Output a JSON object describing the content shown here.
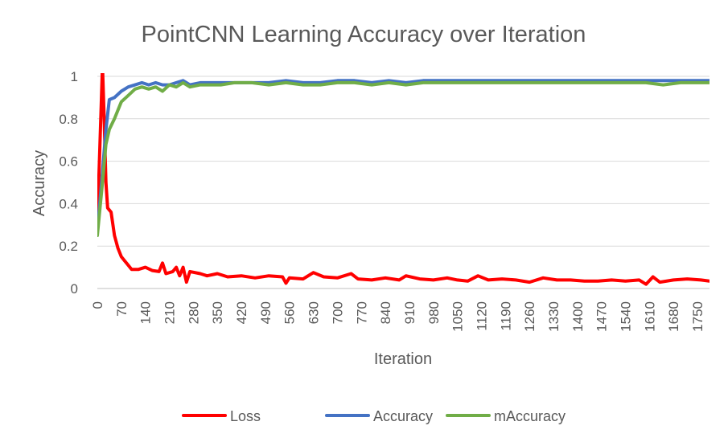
{
  "chart_data": {
    "type": "line",
    "title": "PointCNN Learning Accuracy over Iteration",
    "xlabel": "Iteration",
    "ylabel": "Accuracy",
    "xlim": [
      0,
      1785
    ],
    "ylim": [
      0,
      1
    ],
    "yticks": [
      "0",
      "0.2",
      "0.4",
      "0.6",
      "0.8",
      "1"
    ],
    "xticks": [
      "0",
      "70",
      "140",
      "210",
      "280",
      "350",
      "420",
      "490",
      "560",
      "630",
      "700",
      "770",
      "840",
      "910",
      "980",
      "1050",
      "1120",
      "1190",
      "1260",
      "1330",
      "1400",
      "1470",
      "1540",
      "1610",
      "1680",
      "1750"
    ],
    "grid": true,
    "legend_position": "bottom",
    "series": [
      {
        "name": "Loss",
        "color": "#ff0000",
        "points": [
          [
            0,
            0.3
          ],
          [
            15,
            1.05
          ],
          [
            20,
            0.8
          ],
          [
            25,
            0.5
          ],
          [
            30,
            0.38
          ],
          [
            40,
            0.36
          ],
          [
            50,
            0.25
          ],
          [
            60,
            0.19
          ],
          [
            70,
            0.15
          ],
          [
            80,
            0.13
          ],
          [
            90,
            0.11
          ],
          [
            100,
            0.09
          ],
          [
            120,
            0.09
          ],
          [
            140,
            0.1
          ],
          [
            160,
            0.085
          ],
          [
            180,
            0.08
          ],
          [
            190,
            0.12
          ],
          [
            200,
            0.07
          ],
          [
            220,
            0.08
          ],
          [
            230,
            0.1
          ],
          [
            240,
            0.06
          ],
          [
            250,
            0.1
          ],
          [
            260,
            0.03
          ],
          [
            270,
            0.08
          ],
          [
            300,
            0.07
          ],
          [
            320,
            0.06
          ],
          [
            350,
            0.07
          ],
          [
            380,
            0.055
          ],
          [
            420,
            0.06
          ],
          [
            460,
            0.05
          ],
          [
            500,
            0.06
          ],
          [
            540,
            0.055
          ],
          [
            550,
            0.025
          ],
          [
            560,
            0.05
          ],
          [
            600,
            0.045
          ],
          [
            630,
            0.075
          ],
          [
            660,
            0.055
          ],
          [
            700,
            0.05
          ],
          [
            740,
            0.07
          ],
          [
            760,
            0.045
          ],
          [
            800,
            0.04
          ],
          [
            840,
            0.05
          ],
          [
            880,
            0.04
          ],
          [
            900,
            0.06
          ],
          [
            940,
            0.045
          ],
          [
            980,
            0.04
          ],
          [
            1020,
            0.05
          ],
          [
            1050,
            0.04
          ],
          [
            1080,
            0.035
          ],
          [
            1110,
            0.06
          ],
          [
            1140,
            0.04
          ],
          [
            1180,
            0.045
          ],
          [
            1220,
            0.04
          ],
          [
            1260,
            0.03
          ],
          [
            1300,
            0.05
          ],
          [
            1340,
            0.04
          ],
          [
            1380,
            0.04
          ],
          [
            1420,
            0.035
          ],
          [
            1460,
            0.035
          ],
          [
            1500,
            0.04
          ],
          [
            1540,
            0.035
          ],
          [
            1580,
            0.04
          ],
          [
            1600,
            0.02
          ],
          [
            1620,
            0.055
          ],
          [
            1640,
            0.03
          ],
          [
            1680,
            0.04
          ],
          [
            1720,
            0.045
          ],
          [
            1760,
            0.04
          ],
          [
            1785,
            0.035
          ]
        ]
      },
      {
        "name": "Accuracy",
        "color": "#4472c4",
        "points": [
          [
            0,
            0.27
          ],
          [
            15,
            0.55
          ],
          [
            25,
            0.75
          ],
          [
            35,
            0.89
          ],
          [
            50,
            0.9
          ],
          [
            70,
            0.93
          ],
          [
            90,
            0.95
          ],
          [
            110,
            0.96
          ],
          [
            130,
            0.97
          ],
          [
            150,
            0.96
          ],
          [
            170,
            0.97
          ],
          [
            190,
            0.96
          ],
          [
            210,
            0.96
          ],
          [
            230,
            0.97
          ],
          [
            250,
            0.98
          ],
          [
            270,
            0.96
          ],
          [
            300,
            0.97
          ],
          [
            330,
            0.97
          ],
          [
            360,
            0.97
          ],
          [
            400,
            0.97
          ],
          [
            450,
            0.97
          ],
          [
            500,
            0.97
          ],
          [
            550,
            0.98
          ],
          [
            600,
            0.97
          ],
          [
            650,
            0.97
          ],
          [
            700,
            0.98
          ],
          [
            750,
            0.98
          ],
          [
            800,
            0.97
          ],
          [
            850,
            0.98
          ],
          [
            900,
            0.97
          ],
          [
            950,
            0.98
          ],
          [
            1000,
            0.98
          ],
          [
            1050,
            0.98
          ],
          [
            1100,
            0.98
          ],
          [
            1150,
            0.98
          ],
          [
            1200,
            0.98
          ],
          [
            1250,
            0.98
          ],
          [
            1300,
            0.98
          ],
          [
            1350,
            0.98
          ],
          [
            1400,
            0.98
          ],
          [
            1450,
            0.98
          ],
          [
            1500,
            0.98
          ],
          [
            1550,
            0.98
          ],
          [
            1600,
            0.98
          ],
          [
            1650,
            0.98
          ],
          [
            1700,
            0.98
          ],
          [
            1750,
            0.98
          ],
          [
            1785,
            0.98
          ]
        ]
      },
      {
        "name": "mAccuracy",
        "color": "#70ad47",
        "points": [
          [
            0,
            0.25
          ],
          [
            15,
            0.5
          ],
          [
            25,
            0.68
          ],
          [
            35,
            0.75
          ],
          [
            50,
            0.8
          ],
          [
            70,
            0.88
          ],
          [
            90,
            0.91
          ],
          [
            110,
            0.94
          ],
          [
            130,
            0.95
          ],
          [
            150,
            0.94
          ],
          [
            170,
            0.95
          ],
          [
            190,
            0.93
          ],
          [
            210,
            0.96
          ],
          [
            230,
            0.95
          ],
          [
            250,
            0.97
          ],
          [
            270,
            0.95
          ],
          [
            300,
            0.96
          ],
          [
            330,
            0.96
          ],
          [
            360,
            0.96
          ],
          [
            400,
            0.97
          ],
          [
            450,
            0.97
          ],
          [
            500,
            0.96
          ],
          [
            550,
            0.97
          ],
          [
            600,
            0.96
          ],
          [
            650,
            0.96
          ],
          [
            700,
            0.97
          ],
          [
            750,
            0.97
          ],
          [
            800,
            0.96
          ],
          [
            850,
            0.97
          ],
          [
            900,
            0.96
          ],
          [
            950,
            0.97
          ],
          [
            1000,
            0.97
          ],
          [
            1050,
            0.97
          ],
          [
            1100,
            0.97
          ],
          [
            1150,
            0.97
          ],
          [
            1200,
            0.97
          ],
          [
            1250,
            0.97
          ],
          [
            1300,
            0.97
          ],
          [
            1350,
            0.97
          ],
          [
            1400,
            0.97
          ],
          [
            1450,
            0.97
          ],
          [
            1500,
            0.97
          ],
          [
            1550,
            0.97
          ],
          [
            1600,
            0.97
          ],
          [
            1650,
            0.96
          ],
          [
            1700,
            0.97
          ],
          [
            1750,
            0.97
          ],
          [
            1785,
            0.97
          ]
        ]
      }
    ]
  }
}
